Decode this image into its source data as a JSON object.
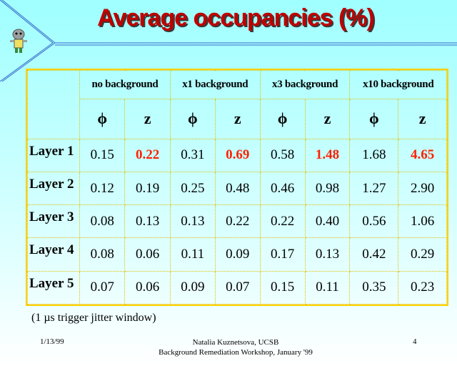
{
  "slide": {
    "title": "Average occupancies (%)",
    "note": "(1 µs trigger jitter window)",
    "footer_date": "1/13/99",
    "footer_author": "Natalia Kuznetsova, UCSB",
    "footer_event": "Background Remediation Workshop, January '99",
    "page_number": "4"
  },
  "table": {
    "groups": [
      "no background",
      "x1 background",
      "x3 background",
      "x10 background"
    ],
    "sub_headers": [
      "ϕ",
      "z",
      "ϕ",
      "z",
      "ϕ",
      "z",
      "ϕ",
      "z"
    ],
    "rows": [
      {
        "label": "Layer 1",
        "values": [
          "0.15",
          "0.22",
          "0.31",
          "0.69",
          "0.58",
          "1.48",
          "1.68",
          "4.65"
        ]
      },
      {
        "label": "Layer 2",
        "values": [
          "0.12",
          "0.19",
          "0.25",
          "0.48",
          "0.46",
          "0.98",
          "1.27",
          "2.90"
        ]
      },
      {
        "label": "Layer 3",
        "values": [
          "0.08",
          "0.13",
          "0.13",
          "0.22",
          "0.22",
          "0.40",
          "0.56",
          "1.06"
        ]
      },
      {
        "label": "Layer 4",
        "values": [
          "0.08",
          "0.06",
          "0.11",
          "0.09",
          "0.17",
          "0.13",
          "0.42",
          "0.29"
        ]
      },
      {
        "label": "Layer 5",
        "values": [
          "0.07",
          "0.06",
          "0.09",
          "0.07",
          "0.15",
          "0.11",
          "0.35",
          "0.23"
        ]
      }
    ],
    "highlight_color": "#ff2000"
  }
}
